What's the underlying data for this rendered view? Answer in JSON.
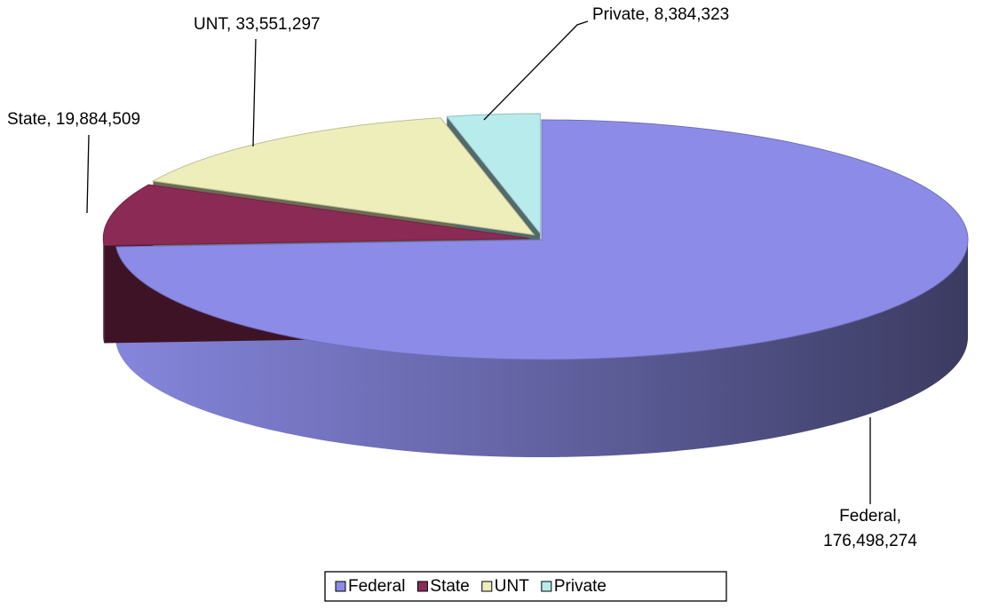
{
  "chart_data": {
    "type": "pie",
    "categories": [
      "Federal",
      "State",
      "UNT",
      "Private"
    ],
    "values": [
      176498274,
      19884509,
      33551297,
      8384323
    ],
    "value_labels": [
      "Federal, 176,498,274",
      "State, 19,884,509",
      "UNT, 33,551,297",
      "Private, 8,384,323"
    ],
    "colors": [
      "#8c8ce8",
      "#8b2a55",
      "#eeeebb",
      "#b8ecec"
    ],
    "legend": "bottom"
  }
}
